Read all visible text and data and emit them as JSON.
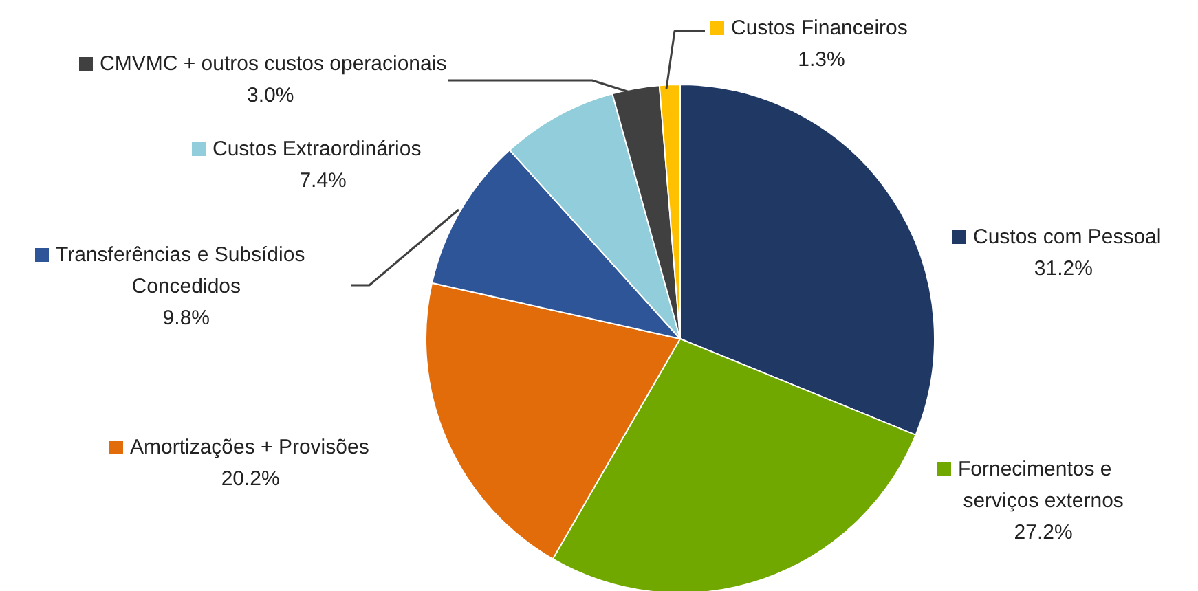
{
  "chart_data": {
    "type": "pie",
    "categories": [
      "Custos com Pessoal",
      "Fornecimentos e serviços externos",
      "Amortizações + Provisões",
      "Transferências e Subsídios Concedidos",
      "Custos Extraordinários",
      "CMVMC + outros custos operacionais",
      "Custos Financeiros"
    ],
    "values": [
      31.2,
      27.2,
      20.2,
      9.8,
      7.4,
      3.0,
      1.3
    ],
    "value_labels": [
      "31.2%",
      "27.2%",
      "20.2%",
      "9.8%",
      "7.4%",
      "3.0%",
      "1.3%"
    ],
    "colors": [
      "#1f3864",
      "#70a800",
      "#e36c0a",
      "#2e5597",
      "#92cddc",
      "#404040",
      "#ffc000"
    ],
    "legend": "left"
  }
}
